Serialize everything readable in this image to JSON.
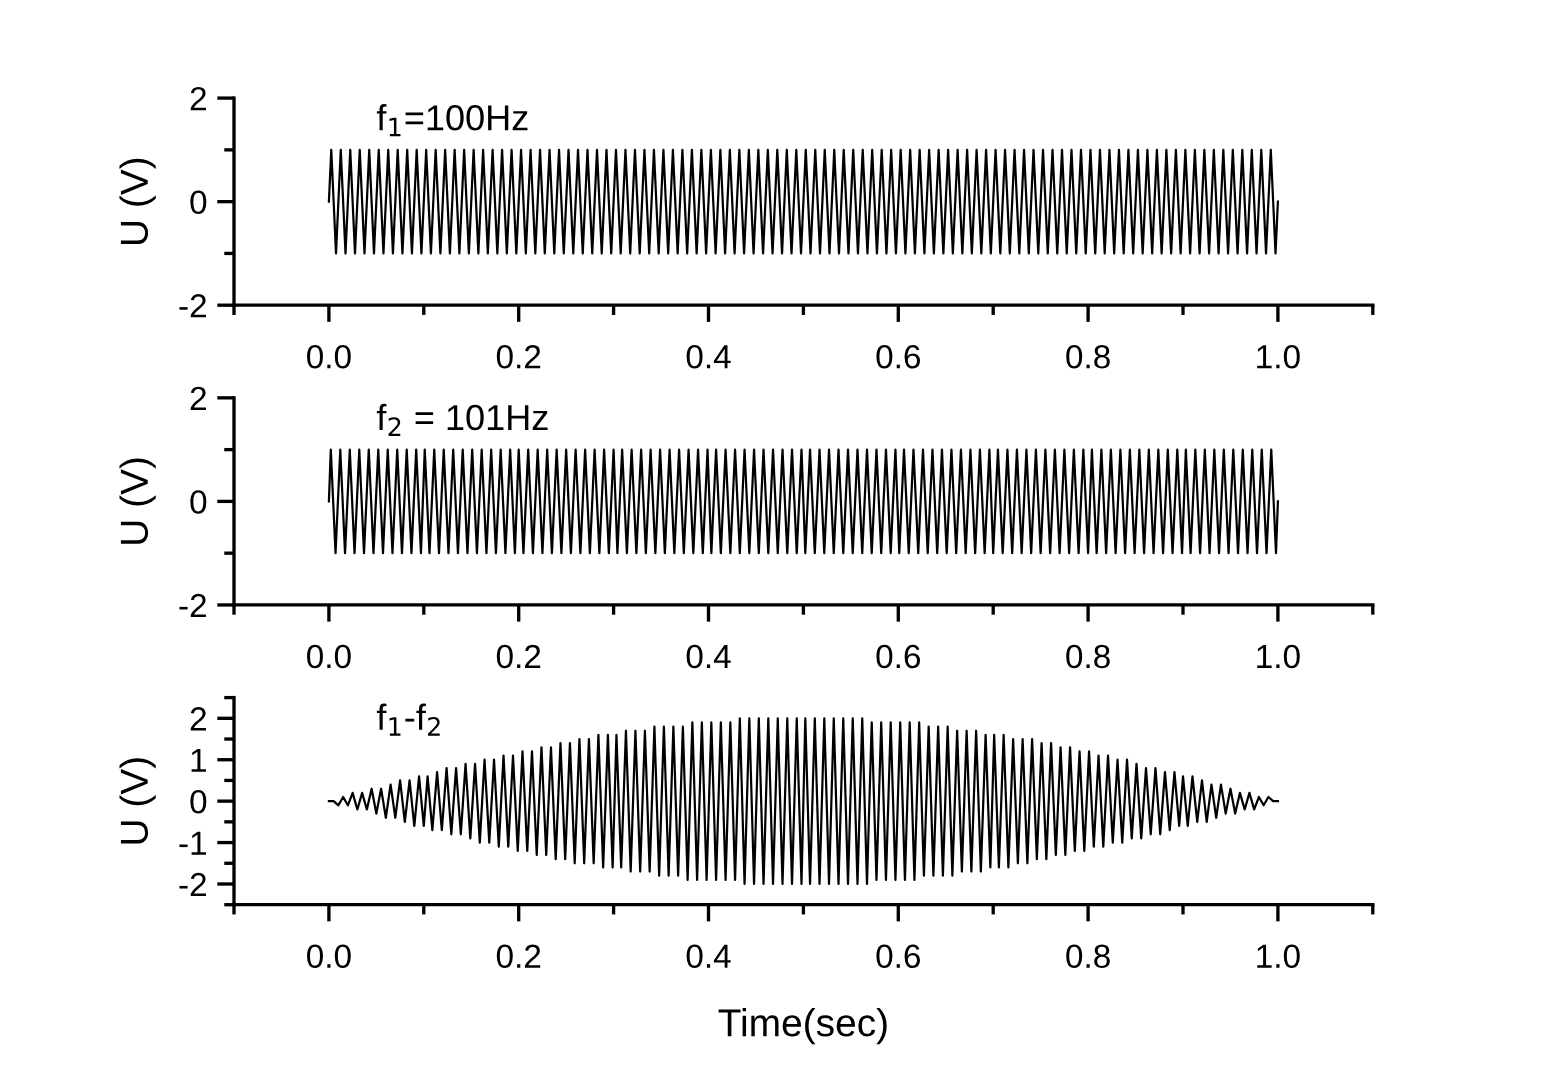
{
  "chart_data": [
    {
      "type": "line",
      "ylabel": "U (V)",
      "annotations": [
        "f$_{1}$=100Hz"
      ],
      "xlim": [
        -0.1,
        1.1
      ],
      "ylim": [
        -2,
        2
      ],
      "xticks": [
        {
          "value": -0.1,
          "label": null
        },
        {
          "value": 0.0,
          "label": "0.0"
        },
        {
          "value": 0.1,
          "label": null
        },
        {
          "value": 0.2,
          "label": "0.2"
        },
        {
          "value": 0.3,
          "label": null
        },
        {
          "value": 0.4,
          "label": "0.4"
        },
        {
          "value": 0.5,
          "label": null
        },
        {
          "value": 0.6,
          "label": "0.6"
        },
        {
          "value": 0.7,
          "label": null
        },
        {
          "value": 0.8,
          "label": "0.8"
        },
        {
          "value": 0.9,
          "label": null
        },
        {
          "value": 1.0,
          "label": "1.0"
        },
        {
          "value": 1.1,
          "label": null
        }
      ],
      "yticks": [
        -2,
        {
          "value": -1,
          "label": null
        },
        0,
        {
          "value": 1,
          "label": null
        },
        2
      ],
      "grid": false,
      "legend": false,
      "marker": "none",
      "line_style": "solid",
      "series": [
        {
          "color": "#000000",
          "x": [
            0,
            0.0025,
            0.0075,
            0.0125,
            0.0175,
            0.0225,
            0.0275,
            0.0325,
            0.0375,
            0.0425,
            0.0475,
            0.0525,
            0.0575,
            0.0625,
            0.0675,
            0.0725,
            0.0775,
            0.0825,
            0.0875,
            0.0925,
            0.0975,
            0.1025,
            0.1075,
            0.1125,
            0.1175,
            0.1225,
            0.1275,
            0.1325,
            0.1375,
            0.1425,
            0.1475,
            0.1525,
            0.1575,
            0.1625,
            0.1675,
            0.1725,
            0.1775,
            0.1825,
            0.1875,
            0.1925,
            0.1975,
            0.2025,
            0.2075,
            0.2125,
            0.2175,
            0.2225,
            0.2275,
            0.2325,
            0.2375,
            0.2425,
            0.2475,
            0.2525,
            0.2575,
            0.2625,
            0.2675,
            0.2725,
            0.2775,
            0.2825,
            0.2875,
            0.2925,
            0.2975,
            0.3025,
            0.3075,
            0.3125,
            0.3175,
            0.3225,
            0.3275,
            0.3325,
            0.3375,
            0.3425,
            0.3475,
            0.3525,
            0.3575,
            0.3625,
            0.3675,
            0.3725,
            0.3775,
            0.3825,
            0.3875,
            0.3925,
            0.3975,
            0.4025,
            0.4075,
            0.4125,
            0.4175,
            0.4225,
            0.4275,
            0.4325,
            0.4375,
            0.4425,
            0.4475,
            0.4525,
            0.4575,
            0.4625,
            0.4675,
            0.4725,
            0.4775,
            0.4825,
            0.4875,
            0.4925,
            0.4975,
            0.5025,
            0.5075,
            0.5125,
            0.5175,
            0.5225,
            0.5275,
            0.5325,
            0.5375,
            0.5425,
            0.5475,
            0.5525,
            0.5575,
            0.5625,
            0.5675,
            0.5725,
            0.5775,
            0.5825,
            0.5875,
            0.5925,
            0.5975,
            0.6025,
            0.6075,
            0.6125,
            0.6175,
            0.6225,
            0.6275,
            0.6325,
            0.6375,
            0.6425,
            0.6475,
            0.6525,
            0.6575,
            0.6625,
            0.6675,
            0.6725,
            0.6775,
            0.6825,
            0.6875,
            0.6925,
            0.6975,
            0.7025,
            0.7075,
            0.7125,
            0.7175,
            0.7225,
            0.7275,
            0.7325,
            0.7375,
            0.7425,
            0.7475,
            0.7525,
            0.7575,
            0.7625,
            0.7675,
            0.7725,
            0.7775,
            0.7825,
            0.7875,
            0.7925,
            0.7975,
            0.8025,
            0.8075,
            0.8125,
            0.8175,
            0.8225,
            0.8275,
            0.8325,
            0.8375,
            0.8425,
            0.8475,
            0.8525,
            0.8575,
            0.8625,
            0.8675,
            0.8725,
            0.8775,
            0.8825,
            0.8875,
            0.8925,
            0.8975,
            0.9025,
            0.9075,
            0.9125,
            0.9175,
            0.9225,
            0.9275,
            0.9325,
            0.9375,
            0.9425,
            0.9475,
            0.9525,
            0.9575,
            0.9625,
            0.9675,
            0.9725,
            0.9775,
            0.9825,
            0.9875,
            0.9925,
            0.9975,
            1
          ],
          "values": [
            0,
            1,
            -1,
            1,
            -1,
            1,
            -1,
            1,
            -1,
            1,
            -1,
            1,
            -1,
            1,
            -1,
            1,
            -1,
            1,
            -1,
            1,
            -1,
            1,
            -1,
            1,
            -1,
            1,
            -1,
            1,
            -1,
            1,
            -1,
            1,
            -1,
            1,
            -1,
            1,
            -1,
            1,
            -1,
            1,
            -1,
            1,
            -1,
            1,
            -1,
            1,
            -1,
            1,
            -1,
            1,
            -1,
            1,
            -1,
            1,
            -1,
            1,
            -1,
            1,
            -1,
            1,
            -1,
            1,
            -1,
            1,
            -1,
            1,
            -1,
            1,
            -1,
            1,
            -1,
            1,
            -1,
            1,
            -1,
            1,
            -1,
            1,
            -1,
            1,
            -1,
            1,
            -1,
            1,
            -1,
            1,
            -1,
            1,
            -1,
            1,
            -1,
            1,
            -1,
            1,
            -1,
            1,
            -1,
            1,
            -1,
            1,
            -1,
            1,
            -1,
            1,
            -1,
            1,
            -1,
            1,
            -1,
            1,
            -1,
            1,
            -1,
            1,
            -1,
            1,
            -1,
            1,
            -1,
            1,
            -1,
            1,
            -1,
            1,
            -1,
            1,
            -1,
            1,
            -1,
            1,
            -1,
            1,
            -1,
            1,
            -1,
            1,
            -1,
            1,
            -1,
            1,
            -1,
            1,
            -1,
            1,
            -1,
            1,
            -1,
            1,
            -1,
            1,
            -1,
            1,
            -1,
            1,
            -1,
            1,
            -1,
            1,
            -1,
            1,
            -1,
            1,
            -1,
            1,
            -1,
            1,
            -1,
            1,
            -1,
            1,
            -1,
            1,
            -1,
            1,
            -1,
            1,
            -1,
            1,
            -1,
            1,
            -1,
            1,
            -1,
            1,
            -1,
            1,
            -1,
            1,
            -1,
            1,
            -1,
            1,
            -1,
            1,
            -1,
            1,
            -1,
            1,
            -1,
            1,
            -1,
            0
          ]
        }
      ]
    },
    {
      "type": "line",
      "ylabel": "U (V)",
      "annotations": [
        "f$_{2}$ = 101Hz"
      ],
      "xlim": [
        -0.1,
        1.1
      ],
      "ylim": [
        -2,
        2
      ],
      "xticks": [
        {
          "value": -0.1,
          "label": null
        },
        {
          "value": 0.0,
          "label": "0.0"
        },
        {
          "value": 0.1,
          "label": null
        },
        {
          "value": 0.2,
          "label": "0.2"
        },
        {
          "value": 0.3,
          "label": null
        },
        {
          "value": 0.4,
          "label": "0.4"
        },
        {
          "value": 0.5,
          "label": null
        },
        {
          "value": 0.6,
          "label": "0.6"
        },
        {
          "value": 0.7,
          "label": null
        },
        {
          "value": 0.8,
          "label": "0.8"
        },
        {
          "value": 0.9,
          "label": null
        },
        {
          "value": 1.0,
          "label": "1.0"
        },
        {
          "value": 1.1,
          "label": null
        }
      ],
      "yticks": [
        -2,
        {
          "value": -1,
          "label": null
        },
        0,
        {
          "value": 1,
          "label": null
        },
        2
      ],
      "grid": false,
      "legend": false,
      "marker": "none",
      "line_style": "solid",
      "series": [
        {
          "color": "#000000",
          "x": [
            0,
            0.002,
            0.007,
            0.012,
            0.017,
            0.022,
            0.027,
            0.032,
            0.037,
            0.042,
            0.047,
            0.052,
            0.057,
            0.062,
            0.067,
            0.072,
            0.077,
            0.082,
            0.087,
            0.092,
            0.097,
            0.101,
            0.106,
            0.111,
            0.116,
            0.121,
            0.126,
            0.131,
            0.136,
            0.141,
            0.146,
            0.151,
            0.156,
            0.161,
            0.166,
            0.171,
            0.176,
            0.181,
            0.186,
            0.191,
            0.196,
            0.2,
            0.205,
            0.21,
            0.215,
            0.22,
            0.225,
            0.23,
            0.235,
            0.24,
            0.245,
            0.25,
            0.255,
            0.26,
            0.265,
            0.27,
            0.275,
            0.28,
            0.285,
            0.29,
            0.295,
            0.3,
            0.304,
            0.309,
            0.314,
            0.319,
            0.324,
            0.329,
            0.334,
            0.339,
            0.344,
            0.349,
            0.354,
            0.359,
            0.364,
            0.369,
            0.374,
            0.379,
            0.384,
            0.389,
            0.394,
            0.399,
            0.403,
            0.408,
            0.413,
            0.418,
            0.423,
            0.428,
            0.433,
            0.438,
            0.443,
            0.448,
            0.453,
            0.458,
            0.463,
            0.468,
            0.473,
            0.478,
            0.483,
            0.488,
            0.493,
            0.498,
            0.502,
            0.507,
            0.512,
            0.517,
            0.522,
            0.527,
            0.532,
            0.537,
            0.542,
            0.547,
            0.552,
            0.557,
            0.562,
            0.567,
            0.572,
            0.577,
            0.582,
            0.587,
            0.592,
            0.597,
            0.601,
            0.606,
            0.611,
            0.616,
            0.621,
            0.626,
            0.631,
            0.636,
            0.641,
            0.646,
            0.651,
            0.656,
            0.661,
            0.666,
            0.671,
            0.676,
            0.681,
            0.686,
            0.691,
            0.696,
            0.7,
            0.705,
            0.71,
            0.715,
            0.72,
            0.725,
            0.73,
            0.735,
            0.74,
            0.745,
            0.75,
            0.755,
            0.76,
            0.765,
            0.77,
            0.775,
            0.78,
            0.785,
            0.79,
            0.795,
            0.8,
            0.804,
            0.809,
            0.814,
            0.819,
            0.824,
            0.829,
            0.834,
            0.839,
            0.844,
            0.849,
            0.854,
            0.859,
            0.864,
            0.869,
            0.874,
            0.879,
            0.884,
            0.889,
            0.894,
            0.899,
            0.903,
            0.908,
            0.913,
            0.918,
            0.923,
            0.928,
            0.933,
            0.938,
            0.943,
            0.948,
            0.953,
            0.958,
            0.963,
            0.968,
            0.973,
            0.978,
            0.983,
            0.988,
            0.993,
            0.998,
            1
          ],
          "values": [
            0,
            1,
            -1,
            1,
            -1,
            1,
            -1,
            1,
            -1,
            1,
            -1,
            1,
            -1,
            1,
            -1,
            1,
            -1,
            1,
            -1,
            1,
            -1,
            1,
            -1,
            1,
            -1,
            1,
            -1,
            1,
            -1,
            1,
            -1,
            1,
            -1,
            1,
            -1,
            1,
            -1,
            1,
            -1,
            1,
            -1,
            1,
            -1,
            1,
            -1,
            1,
            -1,
            1,
            -1,
            1,
            -1,
            1,
            -1,
            1,
            -1,
            1,
            -1,
            1,
            -1,
            1,
            -1,
            1,
            -1,
            1,
            -1,
            1,
            -1,
            1,
            -1,
            1,
            -1,
            1,
            -1,
            1,
            -1,
            1,
            -1,
            1,
            -1,
            1,
            -1,
            1,
            -1,
            1,
            -1,
            1,
            -1,
            1,
            -1,
            1,
            -1,
            1,
            -1,
            1,
            -1,
            1,
            -1,
            1,
            -1,
            1,
            -1,
            1,
            -1,
            1,
            -1,
            1,
            -1,
            1,
            -1,
            1,
            -1,
            1,
            -1,
            1,
            -1,
            1,
            -1,
            1,
            -1,
            1,
            -1,
            1,
            -1,
            1,
            -1,
            1,
            -1,
            1,
            -1,
            1,
            -1,
            1,
            -1,
            1,
            -1,
            1,
            -1,
            1,
            -1,
            1,
            -1,
            1,
            -1,
            1,
            -1,
            1,
            -1,
            1,
            -1,
            1,
            -1,
            1,
            -1,
            1,
            -1,
            1,
            -1,
            1,
            -1,
            1,
            -1,
            1,
            -1,
            1,
            -1,
            1,
            -1,
            1,
            -1,
            1,
            -1,
            1,
            -1,
            1,
            -1,
            1,
            -1,
            1,
            -1,
            1,
            -1,
            1,
            -1,
            1,
            -1,
            1,
            -1,
            1,
            -1,
            1,
            -1,
            1,
            -1,
            1,
            -1,
            1,
            -1,
            1,
            -1,
            1,
            -1,
            1,
            -1,
            0
          ]
        }
      ]
    },
    {
      "type": "line",
      "ylabel": "U (V)",
      "xlabel": "Time(sec)",
      "annotations": [
        "f$_{1}$-f$_{2}$"
      ],
      "xlim": [
        -0.1,
        1.1
      ],
      "ylim": [
        -2.5,
        2.5
      ],
      "xticks": [
        {
          "value": -0.1,
          "label": null
        },
        {
          "value": 0.0,
          "label": "0.0"
        },
        {
          "value": 0.1,
          "label": null
        },
        {
          "value": 0.2,
          "label": "0.2"
        },
        {
          "value": 0.3,
          "label": null
        },
        {
          "value": 0.4,
          "label": "0.4"
        },
        {
          "value": 0.5,
          "label": null
        },
        {
          "value": 0.6,
          "label": "0.6"
        },
        {
          "value": 0.7,
          "label": null
        },
        {
          "value": 0.8,
          "label": "0.8"
        },
        {
          "value": 0.9,
          "label": null
        },
        {
          "value": 1.0,
          "label": "1.0"
        },
        {
          "value": 1.1,
          "label": null
        }
      ],
      "yticks": [
        {
          "value": -2.5,
          "label": null
        },
        -2,
        {
          "value": -1.5,
          "label": null
        },
        -1,
        {
          "value": -0.5,
          "label": null
        },
        0,
        {
          "value": 0.5,
          "label": null
        },
        1,
        {
          "value": 1.5,
          "label": null
        },
        2,
        {
          "value": 2.5,
          "label": null
        }
      ],
      "grid": false,
      "legend": false,
      "marker": "none",
      "line_style": "solid",
      "series": [
        {
          "color": "#000000",
          "x": [
            0,
            0.005,
            0.01,
            0.015,
            0.02,
            0.025,
            0.03,
            0.035,
            0.04,
            0.045,
            0.05,
            0.055,
            0.06,
            0.065,
            0.07,
            0.075,
            0.08,
            0.085,
            0.09,
            0.095,
            0.1,
            0.104,
            0.109,
            0.114,
            0.119,
            0.124,
            0.129,
            0.134,
            0.139,
            0.144,
            0.149,
            0.154,
            0.159,
            0.164,
            0.169,
            0.174,
            0.179,
            0.184,
            0.189,
            0.194,
            0.199,
            0.204,
            0.209,
            0.214,
            0.219,
            0.224,
            0.229,
            0.234,
            0.239,
            0.244,
            0.249,
            0.254,
            0.259,
            0.264,
            0.269,
            0.274,
            0.279,
            0.284,
            0.289,
            0.294,
            0.299,
            0.303,
            0.308,
            0.313,
            0.318,
            0.323,
            0.328,
            0.333,
            0.338,
            0.343,
            0.348,
            0.353,
            0.358,
            0.363,
            0.368,
            0.373,
            0.378,
            0.383,
            0.388,
            0.393,
            0.398,
            0.403,
            0.408,
            0.413,
            0.418,
            0.423,
            0.428,
            0.433,
            0.438,
            0.443,
            0.448,
            0.453,
            0.458,
            0.463,
            0.468,
            0.473,
            0.478,
            0.483,
            0.488,
            0.493,
            0.498,
            0.502,
            0.507,
            0.512,
            0.517,
            0.522,
            0.527,
            0.532,
            0.537,
            0.542,
            0.547,
            0.552,
            0.557,
            0.562,
            0.567,
            0.572,
            0.577,
            0.582,
            0.587,
            0.592,
            0.597,
            0.602,
            0.607,
            0.612,
            0.617,
            0.622,
            0.627,
            0.632,
            0.637,
            0.642,
            0.647,
            0.652,
            0.657,
            0.662,
            0.667,
            0.672,
            0.677,
            0.682,
            0.687,
            0.692,
            0.697,
            0.701,
            0.706,
            0.711,
            0.716,
            0.721,
            0.726,
            0.731,
            0.736,
            0.741,
            0.746,
            0.751,
            0.756,
            0.761,
            0.766,
            0.771,
            0.776,
            0.781,
            0.786,
            0.791,
            0.796,
            0.801,
            0.806,
            0.811,
            0.816,
            0.821,
            0.826,
            0.831,
            0.836,
            0.841,
            0.846,
            0.851,
            0.856,
            0.861,
            0.866,
            0.871,
            0.876,
            0.881,
            0.886,
            0.891,
            0.896,
            0.9,
            0.905,
            0.91,
            0.915,
            0.92,
            0.925,
            0.93,
            0.935,
            0.94,
            0.945,
            0.95,
            0.955,
            0.96,
            0.965,
            0.97,
            0.975,
            0.98,
            0.985,
            0.99,
            0.995,
            1.0
          ],
          "values": [
            0,
            0,
            -0.1,
            0.1,
            -0.1,
            0.2,
            -0.2,
            0.2,
            -0.2,
            0.3,
            -0.3,
            0.3,
            -0.4,
            0.4,
            -0.4,
            0.5,
            -0.5,
            0.5,
            -0.6,
            0.6,
            -0.6,
            0.6,
            -0.7,
            0.7,
            -0.7,
            0.8,
            -0.8,
            0.8,
            -0.8,
            0.9,
            -0.9,
            0.9,
            -1,
            1,
            -1,
            1,
            -1.1,
            1.1,
            -1.1,
            1.1,
            -1.2,
            1.2,
            -1.2,
            1.2,
            -1.3,
            1.3,
            -1.3,
            1.3,
            -1.4,
            1.4,
            -1.4,
            1.4,
            -1.5,
            1.5,
            -1.5,
            1.5,
            -1.5,
            1.6,
            -1.6,
            1.6,
            -1.6,
            1.6,
            -1.6,
            1.7,
            -1.7,
            1.7,
            -1.7,
            1.7,
            -1.7,
            1.8,
            -1.8,
            1.8,
            -1.8,
            1.8,
            -1.8,
            1.8,
            -1.9,
            1.9,
            -1.9,
            1.9,
            -1.9,
            1.9,
            -1.9,
            1.9,
            -1.9,
            1.9,
            -1.9,
            2,
            -2,
            2,
            -2,
            2,
            -2,
            2,
            -2,
            2,
            -2,
            2,
            -2,
            2,
            -2,
            2,
            -2,
            2,
            -2,
            2,
            -2,
            2,
            -2,
            2,
            -2,
            2,
            -2,
            2,
            -2,
            1.9,
            -1.9,
            1.9,
            -1.9,
            1.9,
            -1.9,
            1.9,
            -1.9,
            1.9,
            -1.9,
            1.9,
            -1.8,
            1.8,
            -1.8,
            1.8,
            -1.8,
            1.8,
            -1.8,
            1.7,
            -1.7,
            1.7,
            -1.7,
            1.7,
            -1.7,
            1.6,
            -1.6,
            1.6,
            -1.6,
            1.6,
            -1.6,
            1.5,
            -1.5,
            1.5,
            -1.5,
            1.5,
            -1.4,
            1.4,
            -1.4,
            1.4,
            -1.3,
            1.3,
            -1.3,
            1.3,
            -1.2,
            1.2,
            -1.2,
            1.2,
            -1.1,
            1.1,
            -1.1,
            1.1,
            -1,
            1,
            -1,
            1,
            -0.9,
            0.9,
            -0.9,
            0.8,
            -0.8,
            0.8,
            -0.8,
            0.7,
            -0.7,
            0.7,
            -0.6,
            0.6,
            -0.6,
            0.6,
            -0.5,
            0.5,
            -0.5,
            0.4,
            -0.4,
            0.4,
            -0.3,
            0.3,
            -0.3,
            0.2,
            -0.2,
            0.2,
            -0.2,
            0.1,
            -0.1,
            0.1,
            0,
            0
          ]
        }
      ]
    }
  ]
}
